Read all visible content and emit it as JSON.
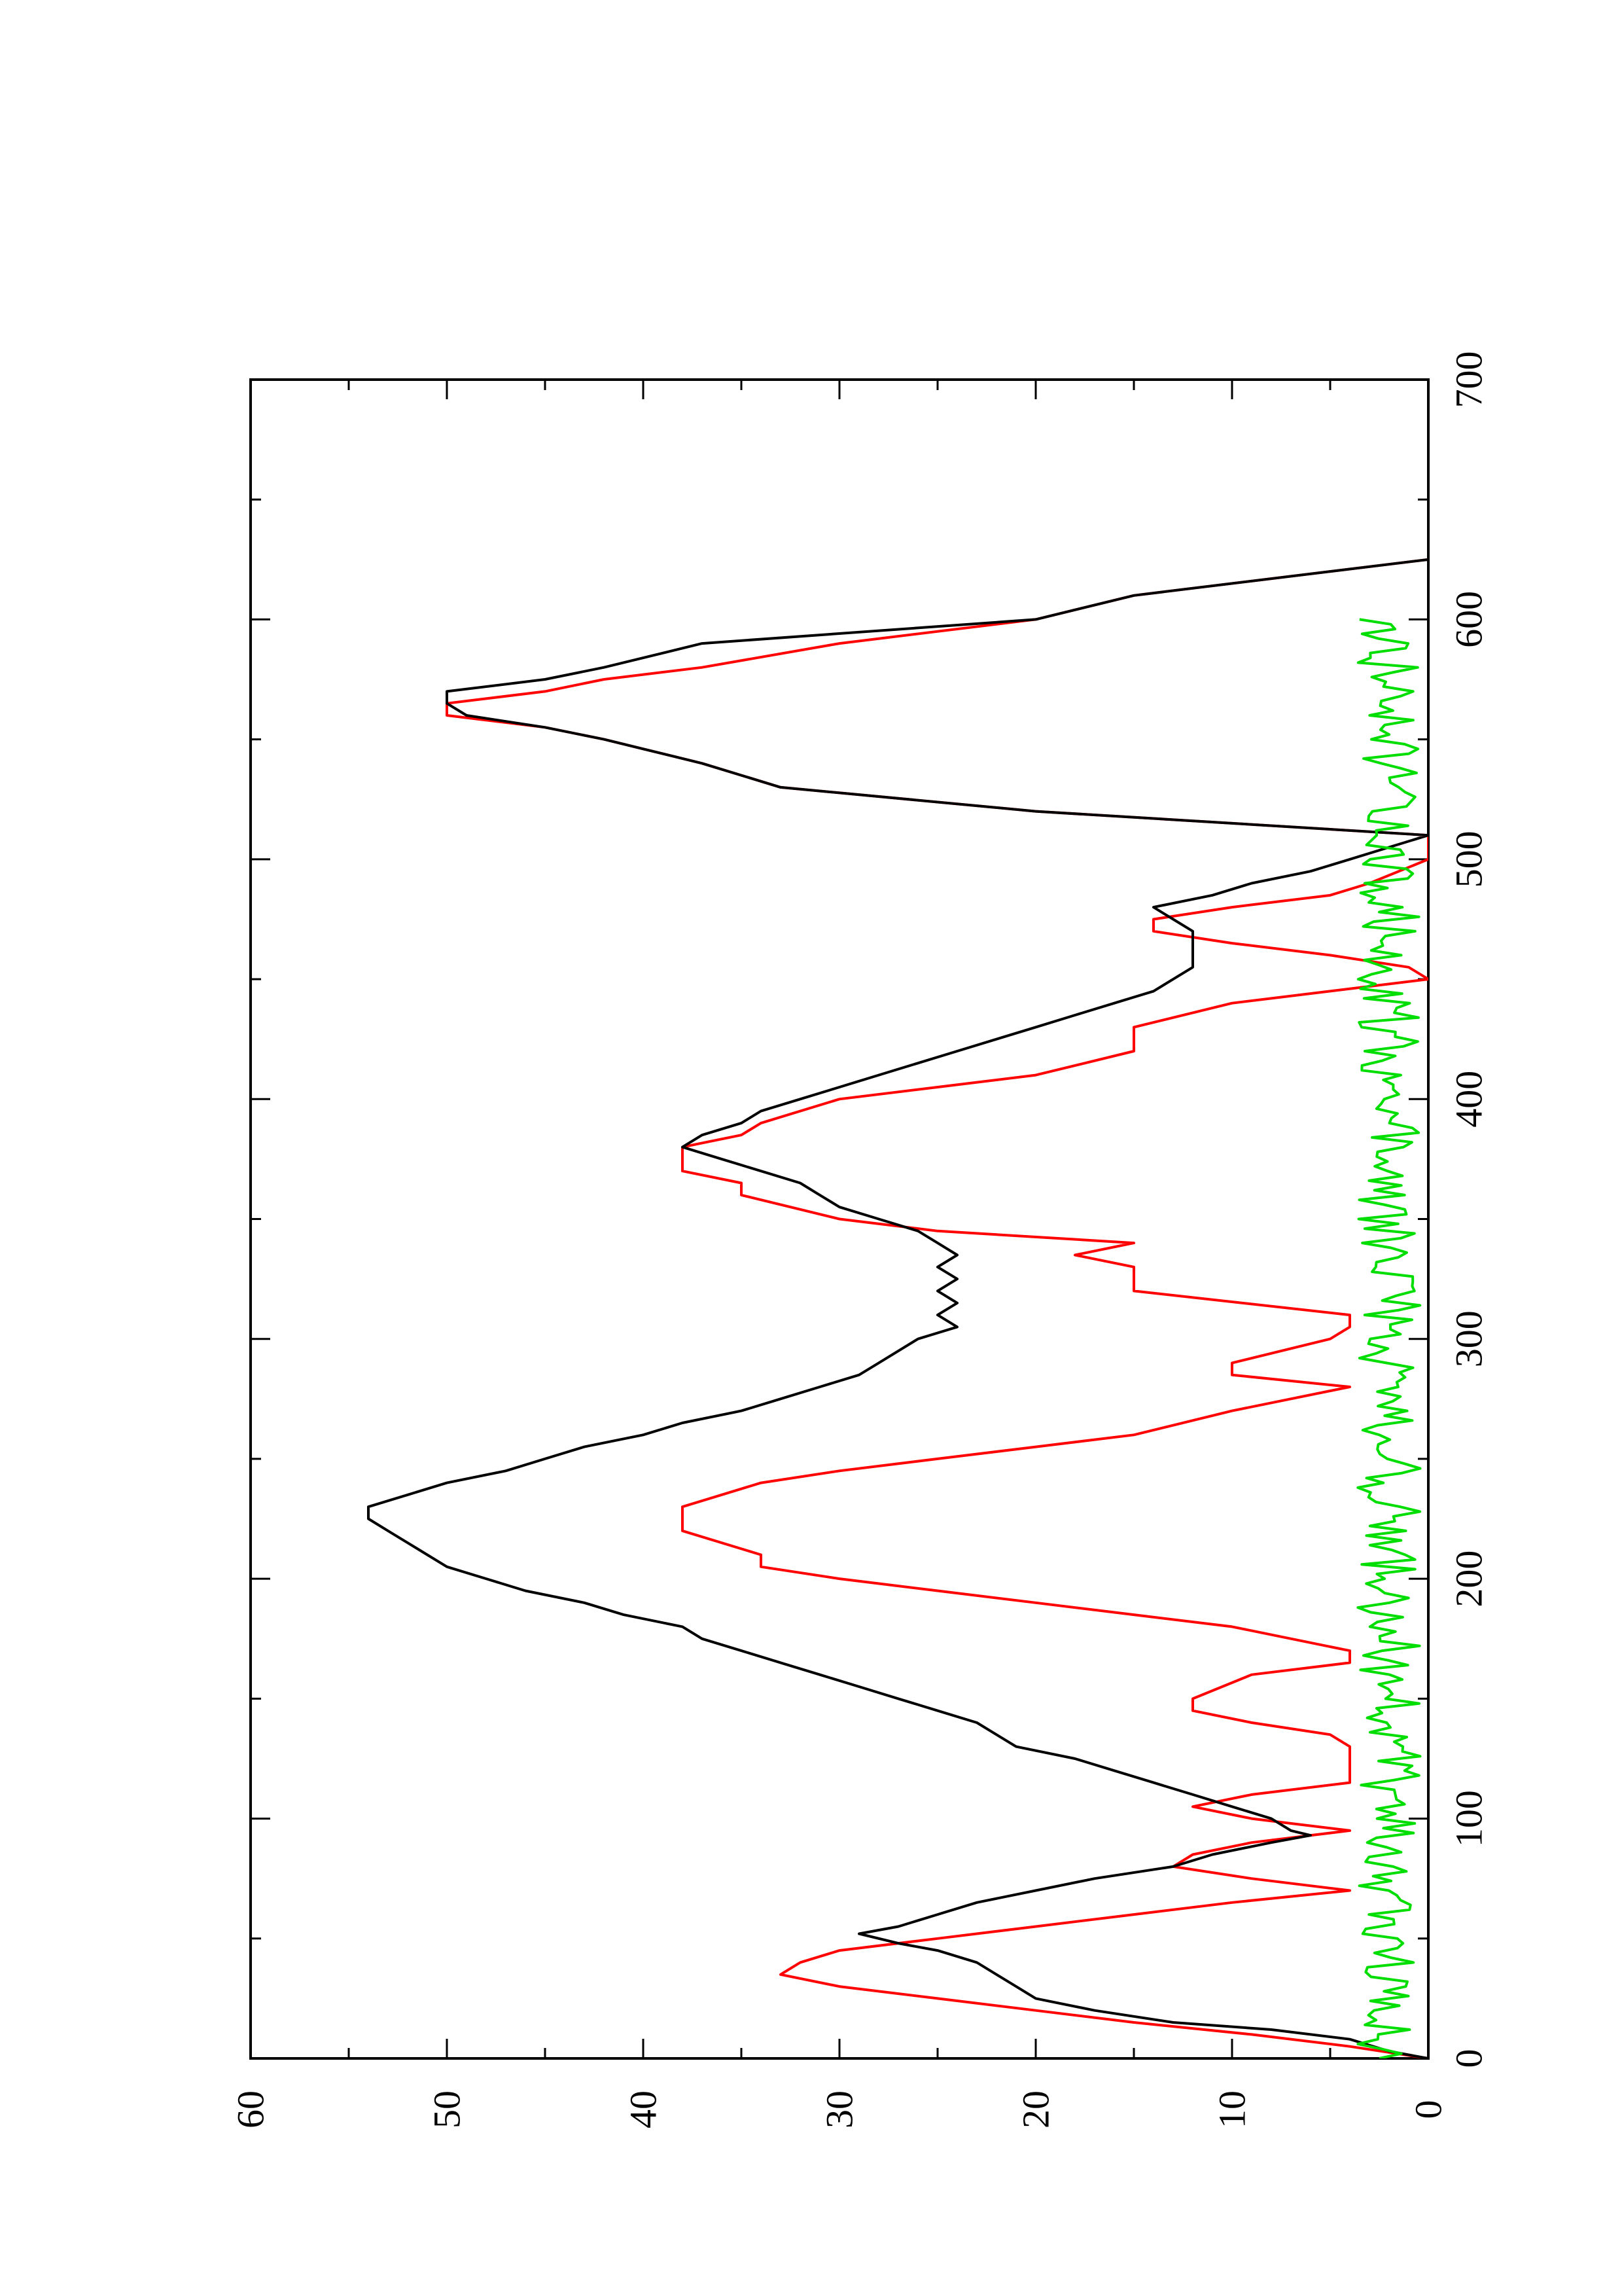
{
  "chart_data": {
    "type": "line",
    "orientation": "rotated-90-counterclockwise",
    "title": "",
    "xlabel": "",
    "ylabel": "",
    "xlim": [
      0,
      700
    ],
    "ylim": [
      0,
      60
    ],
    "x_ticks": [
      0,
      100,
      200,
      300,
      400,
      500,
      600,
      700
    ],
    "y_ticks": [
      0,
      10,
      20,
      30,
      40,
      50,
      60
    ],
    "x_minor_step": 50,
    "y_minor_step": 5,
    "grid": false,
    "legend": "none",
    "series": [
      {
        "color": "#ff0000",
        "style": "step",
        "points": [
          [
            0,
            0
          ],
          [
            5,
            4
          ],
          [
            10,
            9
          ],
          [
            15,
            15
          ],
          [
            20,
            20
          ],
          [
            25,
            25
          ],
          [
            30,
            30
          ],
          [
            35,
            33
          ],
          [
            40,
            32
          ],
          [
            45,
            30
          ],
          [
            50,
            25
          ],
          [
            55,
            20
          ],
          [
            60,
            15
          ],
          [
            65,
            10
          ],
          [
            70,
            4
          ],
          [
            75,
            9
          ],
          [
            80,
            13
          ],
          [
            85,
            12
          ],
          [
            90,
            9
          ],
          [
            95,
            4
          ],
          [
            100,
            9
          ],
          [
            105,
            12
          ],
          [
            110,
            9
          ],
          [
            115,
            4
          ],
          [
            120,
            4
          ],
          [
            130,
            4
          ],
          [
            135,
            5
          ],
          [
            140,
            9
          ],
          [
            145,
            12
          ],
          [
            150,
            12
          ],
          [
            160,
            9
          ],
          [
            165,
            4
          ],
          [
            170,
            4
          ],
          [
            180,
            10
          ],
          [
            185,
            15
          ],
          [
            190,
            20
          ],
          [
            195,
            25
          ],
          [
            200,
            30
          ],
          [
            205,
            34
          ],
          [
            210,
            34
          ],
          [
            220,
            38
          ],
          [
            230,
            38
          ],
          [
            240,
            34
          ],
          [
            245,
            30
          ],
          [
            250,
            25
          ],
          [
            255,
            20
          ],
          [
            260,
            15
          ],
          [
            270,
            10
          ],
          [
            280,
            4
          ],
          [
            285,
            10
          ],
          [
            290,
            10
          ],
          [
            300,
            5
          ],
          [
            305,
            4
          ],
          [
            310,
            4
          ],
          [
            320,
            15
          ],
          [
            330,
            15
          ],
          [
            335,
            18
          ],
          [
            340,
            15
          ],
          [
            345,
            25
          ],
          [
            350,
            30
          ],
          [
            360,
            35
          ],
          [
            365,
            35
          ],
          [
            370,
            38
          ],
          [
            380,
            38
          ],
          [
            385,
            35
          ],
          [
            390,
            34
          ],
          [
            400,
            30
          ],
          [
            405,
            25
          ],
          [
            410,
            20
          ],
          [
            420,
            15
          ],
          [
            430,
            15
          ],
          [
            440,
            10
          ],
          [
            445,
            5
          ],
          [
            450,
            0
          ],
          [
            455,
            1
          ],
          [
            460,
            5
          ],
          [
            465,
            10
          ],
          [
            470,
            14
          ],
          [
            475,
            14
          ],
          [
            480,
            10
          ],
          [
            485,
            5
          ],
          [
            490,
            3
          ],
          [
            500,
            0
          ],
          [
            510,
            0
          ],
          [
            520,
            20
          ],
          [
            530,
            33
          ],
          [
            540,
            37
          ],
          [
            550,
            42
          ],
          [
            555,
            45
          ],
          [
            560,
            50
          ],
          [
            565,
            50
          ],
          [
            570,
            45
          ],
          [
            575,
            42
          ],
          [
            580,
            37
          ],
          [
            590,
            30
          ],
          [
            600,
            20
          ],
          [
            610,
            15
          ],
          [
            620,
            5
          ],
          [
            625,
            0
          ]
        ]
      },
      {
        "color": "#000000",
        "style": "line",
        "points": [
          [
            0,
            0
          ],
          [
            3,
            2
          ],
          [
            8,
            4
          ],
          [
            12,
            8
          ],
          [
            15,
            13
          ],
          [
            20,
            17
          ],
          [
            25,
            20
          ],
          [
            30,
            21
          ],
          [
            35,
            22
          ],
          [
            40,
            23
          ],
          [
            45,
            25
          ],
          [
            48,
            27
          ],
          [
            52,
            29
          ],
          [
            55,
            27
          ],
          [
            60,
            25
          ],
          [
            65,
            23
          ],
          [
            70,
            20
          ],
          [
            75,
            17
          ],
          [
            80,
            13
          ],
          [
            85,
            11
          ],
          [
            90,
            8
          ],
          [
            93,
            6
          ],
          [
            95,
            7
          ],
          [
            100,
            8
          ],
          [
            105,
            10
          ],
          [
            110,
            12
          ],
          [
            115,
            14
          ],
          [
            120,
            16
          ],
          [
            125,
            18
          ],
          [
            130,
            21
          ],
          [
            135,
            22
          ],
          [
            140,
            23
          ],
          [
            145,
            25
          ],
          [
            150,
            27
          ],
          [
            155,
            29
          ],
          [
            160,
            31
          ],
          [
            165,
            33
          ],
          [
            170,
            35
          ],
          [
            175,
            37
          ],
          [
            180,
            38
          ],
          [
            185,
            41
          ],
          [
            190,
            43
          ],
          [
            195,
            46
          ],
          [
            200,
            48
          ],
          [
            205,
            50
          ],
          [
            210,
            51
          ],
          [
            215,
            52
          ],
          [
            220,
            53
          ],
          [
            225,
            54
          ],
          [
            230,
            54
          ],
          [
            235,
            52
          ],
          [
            240,
            50
          ],
          [
            245,
            47
          ],
          [
            250,
            45
          ],
          [
            255,
            43
          ],
          [
            260,
            40
          ],
          [
            265,
            38
          ],
          [
            270,
            35
          ],
          [
            275,
            33
          ],
          [
            280,
            31
          ],
          [
            285,
            29
          ],
          [
            290,
            28
          ],
          [
            300,
            26
          ],
          [
            305,
            24
          ],
          [
            310,
            25
          ],
          [
            315,
            24
          ],
          [
            320,
            25
          ],
          [
            325,
            24
          ],
          [
            330,
            25
          ],
          [
            335,
            24
          ],
          [
            340,
            25
          ],
          [
            345,
            26
          ],
          [
            350,
            28
          ],
          [
            355,
            30
          ],
          [
            360,
            31
          ],
          [
            365,
            32
          ],
          [
            370,
            34
          ],
          [
            375,
            36
          ],
          [
            380,
            38
          ],
          [
            385,
            37
          ],
          [
            390,
            35
          ],
          [
            395,
            34
          ],
          [
            400,
            32
          ],
          [
            405,
            30
          ],
          [
            410,
            28
          ],
          [
            415,
            26
          ],
          [
            420,
            24
          ],
          [
            425,
            22
          ],
          [
            430,
            20
          ],
          [
            435,
            18
          ],
          [
            440,
            16
          ],
          [
            445,
            14
          ],
          [
            450,
            13
          ],
          [
            455,
            12
          ],
          [
            460,
            12
          ],
          [
            465,
            12
          ],
          [
            470,
            12
          ],
          [
            475,
            13
          ],
          [
            480,
            14
          ],
          [
            485,
            11
          ],
          [
            490,
            9
          ],
          [
            495,
            6
          ],
          [
            500,
            4
          ],
          [
            505,
            2
          ],
          [
            510,
            0
          ],
          [
            520,
            20
          ],
          [
            530,
            33
          ],
          [
            540,
            37
          ],
          [
            550,
            42
          ],
          [
            555,
            45
          ],
          [
            560,
            49
          ],
          [
            565,
            50
          ],
          [
            570,
            50
          ],
          [
            575,
            45
          ],
          [
            580,
            42
          ],
          [
            590,
            37
          ],
          [
            600,
            20
          ],
          [
            610,
            15
          ],
          [
            620,
            5
          ],
          [
            625,
            0
          ]
        ]
      },
      {
        "color": "#00dd00",
        "style": "line",
        "seed": 12345,
        "noise_range": [
          0,
          600
        ],
        "noise_center": 2,
        "noise_amplitude": 1.6
      }
    ]
  }
}
